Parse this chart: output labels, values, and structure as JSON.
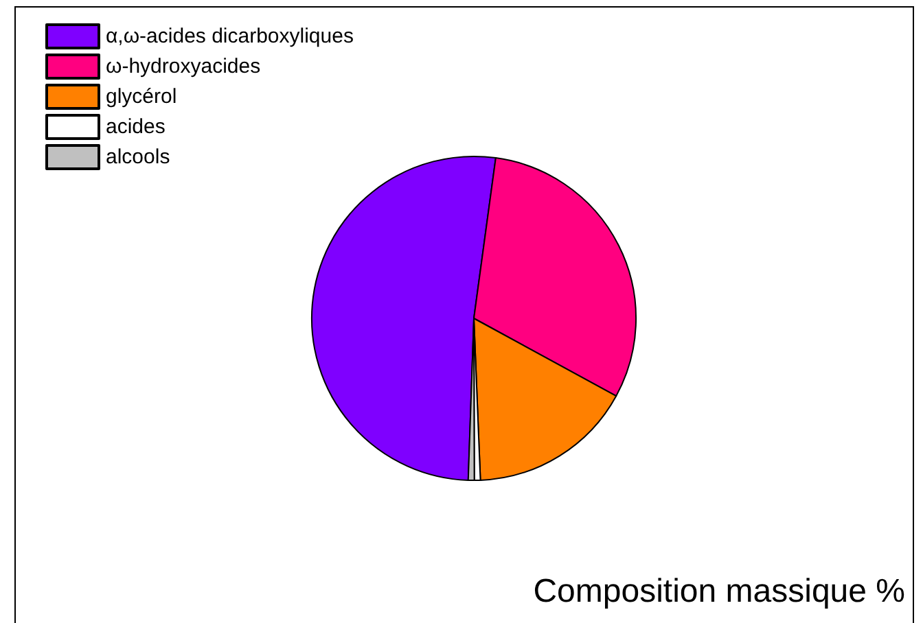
{
  "chart_data": {
    "type": "pie",
    "title": "Composition massique %",
    "categories": [
      "α,ω-acides dicarboxyliques",
      "ω-hydroxyacides",
      "glycérol",
      "acides",
      "alcools"
    ],
    "values": [
      51.6,
      30.8,
      16.4,
      0.6,
      0.6
    ],
    "colors": [
      "#7f00ff",
      "#ff0080",
      "#ff8000",
      "#ffffff",
      "#c0c0c0"
    ],
    "legend": "top left"
  }
}
